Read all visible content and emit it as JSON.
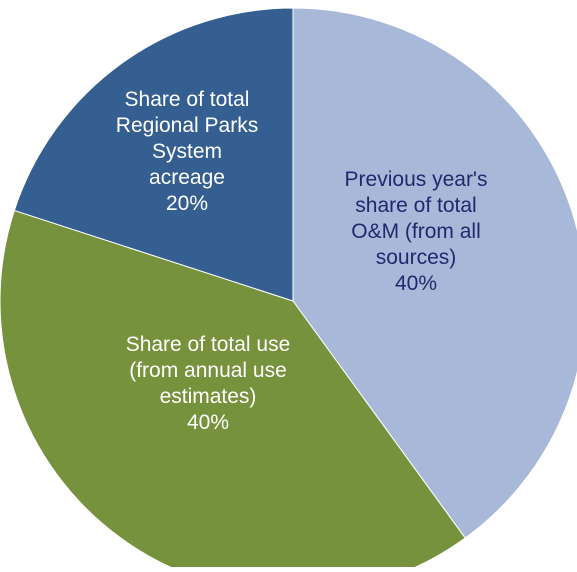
{
  "chart_data": {
    "type": "pie",
    "slices": [
      {
        "label_lines": [
          "Previous year's",
          "share of total",
          "O&M (from all",
          "sources)"
        ],
        "percent_label": "40%",
        "value": 40,
        "color": "#a7b8d8",
        "text_color": "#1f2a6e"
      },
      {
        "label_lines": [
          "Share of total use",
          "(from annual use",
          "estimates)"
        ],
        "percent_label": "40%",
        "value": 40,
        "color": "#76923c",
        "text_color": "#ffffff"
      },
      {
        "label_lines": [
          "Share of total",
          "Regional Parks",
          "System",
          "acreage"
        ],
        "percent_label": "20%",
        "value": 20,
        "color": "#365f91",
        "text_color": "#ffffff"
      }
    ],
    "start": "top",
    "direction": "clockwise",
    "legend": "none"
  }
}
